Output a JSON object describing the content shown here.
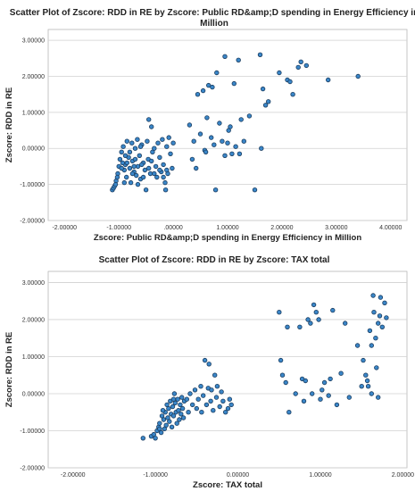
{
  "chart_data": [
    {
      "type": "scatter",
      "title_line1": "Scatter Plot of Zscore:  RDD in RE by Zscore:  Public RD&amp;D spending in  Energy Efficiency in",
      "title_line2": "Million",
      "xlabel": "Zscore:  Public RD&amp;D spending in  Energy Efficiency in Million",
      "ylabel": "Zscore:  RDD in RE",
      "xlim": [
        -2.3,
        4.3
      ],
      "ylim": [
        -2.0,
        3.3
      ],
      "xticks": [
        -2,
        -1,
        0,
        1,
        2,
        3,
        4
      ],
      "xtick_labels": [
        "-2.00000",
        "-1.00000",
        ".00000",
        "1.00000",
        "2.00000",
        "3.00000",
        "4.00000"
      ],
      "yticks": [
        -2,
        -1,
        0,
        1,
        2,
        3
      ],
      "ytick_labels": [
        "-2.00000",
        "-1.00000",
        "0.00000",
        "1.00000",
        "2.00000",
        "3.00000"
      ],
      "grid": "horizontal",
      "points": [
        [
          -1.12,
          -1.15
        ],
        [
          -1.1,
          -1.1
        ],
        [
          -1.08,
          -1.05
        ],
        [
          -1.05,
          -0.9
        ],
        [
          -1.02,
          -0.7
        ],
        [
          -1.0,
          -0.5
        ],
        [
          -0.98,
          -0.3
        ],
        [
          -0.95,
          -0.1
        ],
        [
          -0.92,
          0.05
        ],
        [
          -0.9,
          -0.6
        ],
        [
          -0.88,
          -0.45
        ],
        [
          -0.86,
          -0.8
        ],
        [
          -0.85,
          0.2
        ],
        [
          -0.82,
          -0.25
        ],
        [
          -0.8,
          -0.55
        ],
        [
          -0.78,
          -0.95
        ],
        [
          -0.76,
          0.15
        ],
        [
          -0.75,
          -0.35
        ],
        [
          -0.72,
          -0.65
        ],
        [
          -0.7,
          0.0
        ],
        [
          -0.68,
          -0.75
        ],
        [
          -0.66,
          0.25
        ],
        [
          -0.65,
          -0.5
        ],
        [
          -0.62,
          -0.2
        ],
        [
          -0.6,
          -0.85
        ],
        [
          -0.58,
          0.1
        ],
        [
          -0.55,
          -0.4
        ],
        [
          -0.52,
          -0.6
        ],
        [
          -0.5,
          -1.15
        ],
        [
          -0.48,
          0.2
        ],
        [
          -0.46,
          -0.3
        ],
        [
          -0.45,
          0.8
        ],
        [
          -0.42,
          -0.7
        ],
        [
          -0.4,
          0.6
        ],
        [
          -0.38,
          -0.1
        ],
        [
          -0.35,
          0.0
        ],
        [
          -0.32,
          -0.5
        ],
        [
          -0.3,
          -0.8
        ],
        [
          -0.28,
          0.15
        ],
        [
          -0.25,
          -0.25
        ],
        [
          -0.22,
          -0.65
        ],
        [
          -0.2,
          0.25
        ],
        [
          -0.18,
          -0.45
        ],
        [
          -0.15,
          -0.95
        ],
        [
          -0.12,
          0.05
        ],
        [
          -0.1,
          -0.7
        ],
        [
          -0.08,
          0.3
        ],
        [
          -0.05,
          -0.15
        ],
        [
          -0.02,
          -0.55
        ],
        [
          0.0,
          0.15
        ],
        [
          -0.14,
          -1.15
        ],
        [
          -0.95,
          -0.55
        ],
        [
          -0.9,
          -0.95
        ],
        [
          -0.85,
          -0.4
        ],
        [
          -0.8,
          -0.1
        ],
        [
          -0.75,
          -0.7
        ],
        [
          -0.7,
          -0.3
        ],
        [
          -0.65,
          -1.0
        ],
        [
          -0.6,
          0.05
        ],
        [
          -0.55,
          -0.8
        ],
        [
          -0.12,
          -0.6
        ],
        [
          -0.18,
          -0.8
        ],
        [
          -0.25,
          -0.6
        ],
        [
          -0.35,
          -0.7
        ],
        [
          -0.4,
          -0.35
        ],
        [
          -0.88,
          -0.2
        ],
        [
          -1.03,
          -0.8
        ],
        [
          -1.06,
          -1.0
        ],
        [
          -0.93,
          -0.4
        ],
        [
          -0.72,
          -0.5
        ],
        [
          -0.58,
          -0.45
        ],
        [
          -0.45,
          -0.55
        ],
        [
          0.3,
          0.65
        ],
        [
          0.35,
          -0.3
        ],
        [
          0.38,
          0.2
        ],
        [
          0.42,
          -0.55
        ],
        [
          0.45,
          1.5
        ],
        [
          0.5,
          0.4
        ],
        [
          0.55,
          1.6
        ],
        [
          0.58,
          -0.05
        ],
        [
          0.62,
          0.85
        ],
        [
          0.65,
          1.75
        ],
        [
          0.7,
          0.3
        ],
        [
          0.72,
          1.7
        ],
        [
          0.75,
          0.1
        ],
        [
          0.78,
          -1.15
        ],
        [
          0.8,
          2.1
        ],
        [
          0.85,
          0.7
        ],
        [
          0.9,
          0.2
        ],
        [
          0.95,
          2.55
        ],
        [
          1.0,
          0.15
        ],
        [
          1.02,
          0.5
        ],
        [
          1.08,
          -0.15
        ],
        [
          1.12,
          1.8
        ],
        [
          1.15,
          0.05
        ],
        [
          1.2,
          2.45
        ],
        [
          1.25,
          0.8
        ],
        [
          1.3,
          0.2
        ],
        [
          1.4,
          0.9
        ],
        [
          1.5,
          -1.15
        ],
        [
          1.6,
          2.6
        ],
        [
          1.62,
          0.0
        ],
        [
          1.65,
          1.65
        ],
        [
          1.7,
          1.2
        ],
        [
          1.75,
          1.3
        ],
        [
          1.95,
          2.1
        ],
        [
          2.1,
          1.9
        ],
        [
          2.15,
          1.85
        ],
        [
          2.2,
          1.5
        ],
        [
          2.3,
          2.25
        ],
        [
          2.35,
          2.4
        ],
        [
          2.45,
          2.3
        ],
        [
          2.85,
          1.9
        ],
        [
          3.4,
          2.0
        ],
        [
          1.22,
          -0.15
        ],
        [
          0.6,
          -0.1
        ],
        [
          1.05,
          0.6
        ],
        [
          0.95,
          -0.2
        ]
      ]
    },
    {
      "type": "scatter",
      "title_line1": "Scatter Plot of Zscore:  RDD in RE by Zscore:  TAX total",
      "title_line2": "",
      "xlabel": "Zscore:  TAX total",
      "ylabel": "Zscore:  RDD in RE",
      "xlim": [
        -2.3,
        2.05
      ],
      "ylim": [
        -2.0,
        3.3
      ],
      "xticks": [
        -2,
        -1,
        0,
        1,
        2
      ],
      "xtick_labels": [
        "-2.00000",
        "-1.00000",
        "0.00000",
        "1.00000",
        "2.00000"
      ],
      "yticks": [
        -2,
        -1,
        0,
        1,
        2,
        3
      ],
      "ytick_labels": [
        "-2.00000",
        "-1.00000",
        "0.00000",
        "1.00000",
        "2.00000",
        "3.00000"
      ],
      "grid": "horizontal",
      "points": [
        [
          -1.15,
          -1.2
        ],
        [
          -1.05,
          -1.15
        ],
        [
          -1.02,
          -1.1
        ],
        [
          -1.0,
          -1.2
        ],
        [
          -0.98,
          -1.0
        ],
        [
          -0.96,
          -0.9
        ],
        [
          -0.95,
          -0.8
        ],
        [
          -0.93,
          -1.05
        ],
        [
          -0.92,
          -0.6
        ],
        [
          -0.9,
          -0.7
        ],
        [
          -0.89,
          -0.95
        ],
        [
          -0.88,
          -0.5
        ],
        [
          -0.87,
          -0.85
        ],
        [
          -0.86,
          -0.3
        ],
        [
          -0.85,
          -0.65
        ],
        [
          -0.84,
          -0.4
        ],
        [
          -0.83,
          -0.75
        ],
        [
          -0.82,
          -0.2
        ],
        [
          -0.81,
          -0.55
        ],
        [
          -0.8,
          -0.9
        ],
        [
          -0.79,
          -0.35
        ],
        [
          -0.78,
          -0.6
        ],
        [
          -0.77,
          0.0
        ],
        [
          -0.76,
          -0.25
        ],
        [
          -0.75,
          -0.5
        ],
        [
          -0.74,
          -0.8
        ],
        [
          -0.73,
          -0.15
        ],
        [
          -0.72,
          -0.45
        ],
        [
          -0.71,
          -0.7
        ],
        [
          -0.7,
          -0.3
        ],
        [
          -0.69,
          -0.55
        ],
        [
          -0.68,
          -0.1
        ],
        [
          -0.67,
          -0.4
        ],
        [
          -0.66,
          -0.65
        ],
        [
          -0.65,
          -0.2
        ],
        [
          -0.6,
          -0.5
        ],
        [
          -0.55,
          -0.3
        ],
        [
          -0.52,
          0.1
        ],
        [
          -0.5,
          -0.4
        ],
        [
          -0.48,
          -0.15
        ],
        [
          -0.45,
          0.2
        ],
        [
          -0.44,
          -0.5
        ],
        [
          -0.42,
          -0.05
        ],
        [
          -0.4,
          0.9
        ],
        [
          -0.38,
          -0.3
        ],
        [
          -0.36,
          0.15
        ],
        [
          -0.35,
          0.8
        ],
        [
          -0.33,
          -0.2
        ],
        [
          -0.32,
          0.1
        ],
        [
          -0.3,
          -0.45
        ],
        [
          -0.28,
          0.5
        ],
        [
          -0.26,
          -0.1
        ],
        [
          -0.25,
          0.2
        ],
        [
          -0.22,
          -0.35
        ],
        [
          -0.2,
          0.05
        ],
        [
          -0.18,
          -0.2
        ],
        [
          -0.15,
          -0.5
        ],
        [
          -0.12,
          -0.4
        ],
        [
          -0.1,
          -0.15
        ],
        [
          -0.08,
          -0.3
        ],
        [
          -0.95,
          -0.95
        ],
        [
          -0.91,
          -0.45
        ],
        [
          -0.78,
          -0.15
        ],
        [
          -0.62,
          -0.15
        ],
        [
          -0.58,
          0.0
        ],
        [
          0.5,
          2.2
        ],
        [
          0.52,
          0.9
        ],
        [
          0.54,
          0.5
        ],
        [
          0.58,
          0.3
        ],
        [
          0.6,
          1.8
        ],
        [
          0.62,
          -0.5
        ],
        [
          0.7,
          0.0
        ],
        [
          0.75,
          1.8
        ],
        [
          0.78,
          0.4
        ],
        [
          0.8,
          -0.2
        ],
        [
          0.82,
          0.35
        ],
        [
          0.85,
          2.0
        ],
        [
          0.88,
          1.9
        ],
        [
          0.9,
          0.0
        ],
        [
          0.92,
          2.4
        ],
        [
          0.95,
          2.2
        ],
        [
          0.98,
          2.0
        ],
        [
          1.0,
          -0.15
        ],
        [
          1.02,
          0.1
        ],
        [
          1.05,
          0.3
        ],
        [
          1.1,
          -0.05
        ],
        [
          1.12,
          0.4
        ],
        [
          1.15,
          2.25
        ],
        [
          1.2,
          -0.3
        ],
        [
          1.25,
          0.55
        ],
        [
          1.3,
          1.9
        ],
        [
          1.35,
          -0.1
        ],
        [
          1.45,
          1.3
        ],
        [
          1.5,
          0.2
        ],
        [
          1.55,
          0.5
        ],
        [
          1.58,
          0.2
        ],
        [
          1.6,
          1.7
        ],
        [
          1.62,
          1.3
        ],
        [
          1.64,
          2.65
        ],
        [
          1.65,
          2.2
        ],
        [
          1.67,
          1.5
        ],
        [
          1.68,
          0.7
        ],
        [
          1.7,
          1.9
        ],
        [
          1.72,
          2.1
        ],
        [
          1.75,
          1.8
        ],
        [
          1.78,
          2.45
        ],
        [
          1.8,
          2.05
        ],
        [
          1.62,
          0.0
        ],
        [
          1.7,
          -0.1
        ],
        [
          1.57,
          0.35
        ],
        [
          1.73,
          2.6
        ],
        [
          1.52,
          0.9
        ]
      ]
    }
  ]
}
